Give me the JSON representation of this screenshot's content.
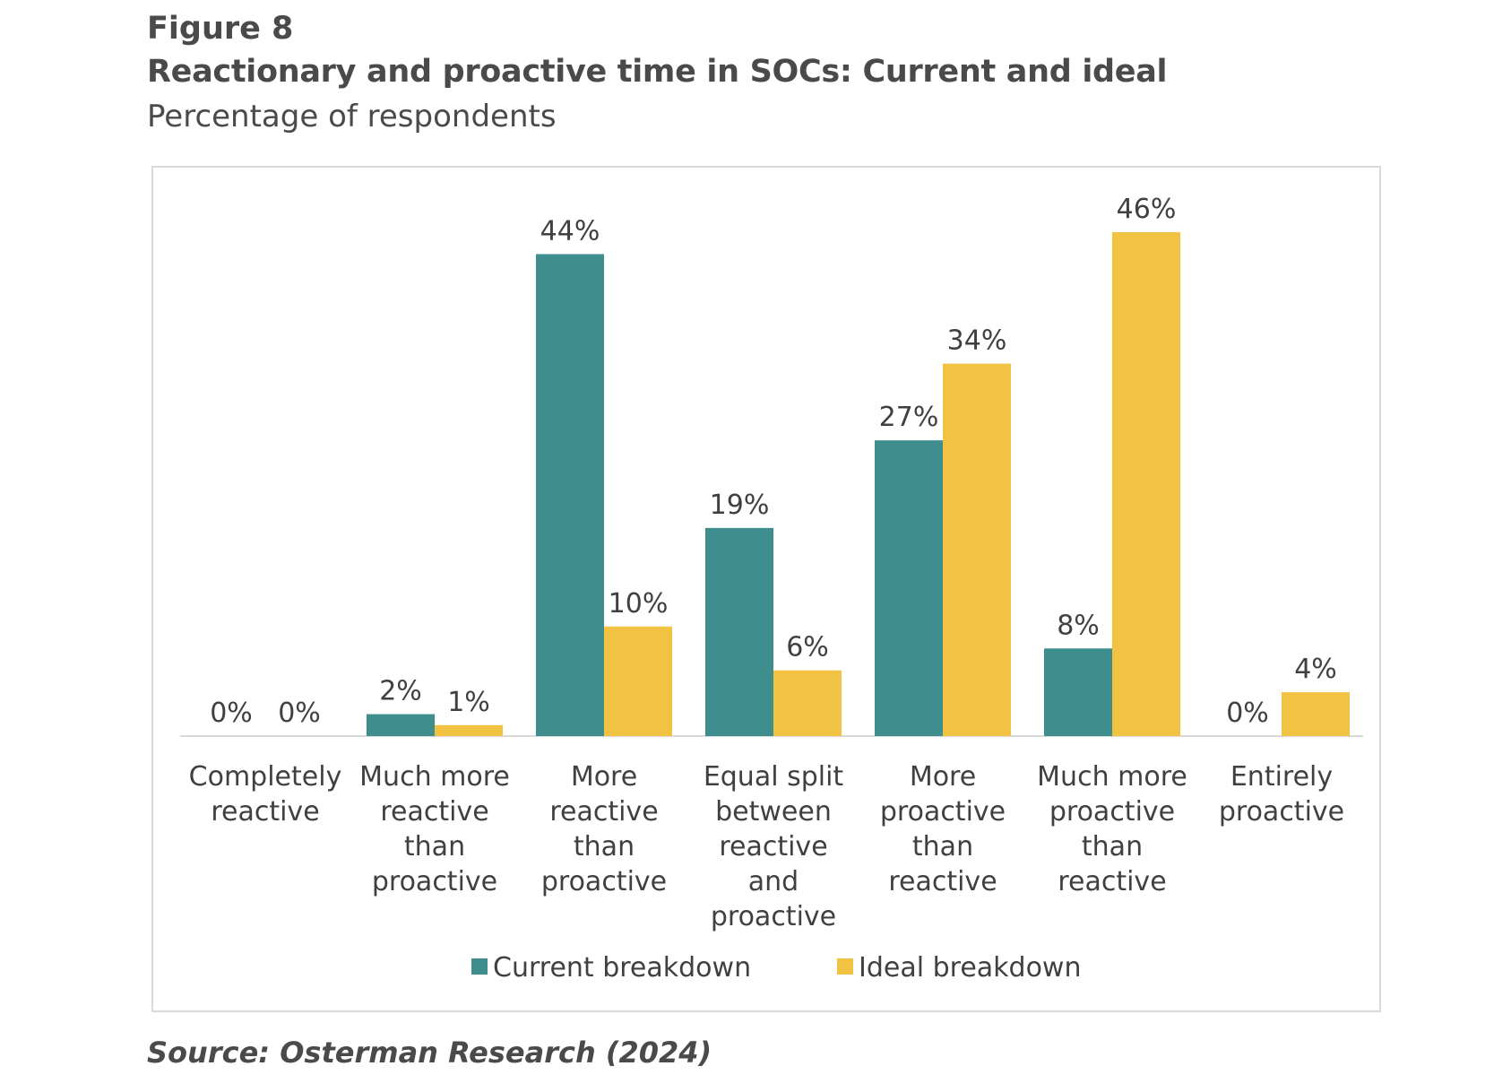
{
  "figure": {
    "label": "Figure 8",
    "title": "Reactionary and proactive time in SOCs: Current and ideal",
    "subtitle": "Percentage of respondents",
    "source": "Source: Osterman Research (2024)"
  },
  "chart_data": {
    "type": "bar",
    "title": "Reactionary and proactive time in SOCs: Current and ideal",
    "subtitle": "Percentage of respondents",
    "categories": [
      [
        "Completely",
        "reactive"
      ],
      [
        "Much more",
        "reactive",
        "than",
        "proactive"
      ],
      [
        "More",
        "reactive",
        "than",
        "proactive"
      ],
      [
        "Equal split",
        "between",
        "reactive",
        "and",
        "proactive"
      ],
      [
        "More",
        "proactive",
        "than",
        "reactive"
      ],
      [
        "Much more",
        "proactive",
        "than",
        "reactive"
      ],
      [
        "Entirely",
        "proactive"
      ]
    ],
    "series": [
      {
        "name": "Current breakdown",
        "color": "#3f8e8e",
        "values": [
          0,
          2,
          44,
          19,
          27,
          8,
          0
        ]
      },
      {
        "name": "Ideal breakdown",
        "color": "#f2c242",
        "values": [
          0,
          1,
          10,
          6,
          34,
          46,
          4
        ]
      }
    ],
    "value_suffix": "%",
    "ylim": [
      0,
      46
    ],
    "grid": false,
    "legend_position": "bottom"
  }
}
